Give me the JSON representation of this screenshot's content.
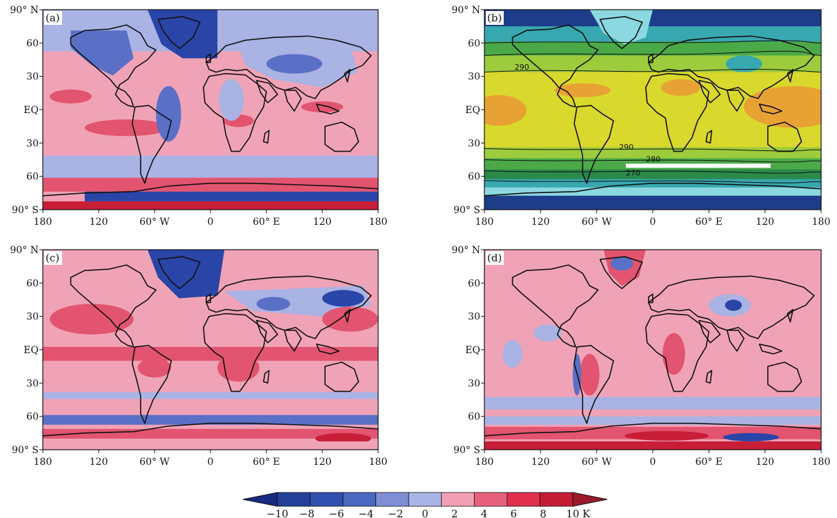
{
  "panels": [
    {
      "id": "a",
      "label": "(a)",
      "kind": "anomaly"
    },
    {
      "id": "b",
      "label": "(b)",
      "kind": "climatology",
      "contour_labels": [
        "290",
        "280",
        "290",
        "270"
      ]
    },
    {
      "id": "c",
      "label": "(c)",
      "kind": "anomaly"
    },
    {
      "id": "d",
      "label": "(d)",
      "kind": "anomaly"
    }
  ],
  "lat_ticks": [
    "90° N",
    "60",
    "30",
    "EQ",
    "30",
    "60",
    "90° S"
  ],
  "lon_ticks": [
    "180",
    "120",
    "60° W",
    "0",
    "60° E",
    "120",
    "180"
  ],
  "colorbar": {
    "ticks": [
      "−10",
      "−8",
      "−6",
      "−4",
      "−2",
      "0",
      "2",
      "4",
      "6",
      "8",
      "10"
    ],
    "unit": "K",
    "colors": [
      "#1a2a80",
      "#25409a",
      "#3050b0",
      "#4a68c0",
      "#7f8fd4",
      "#aab4e6",
      "#f2a0b4",
      "#e8607f",
      "#e0304c",
      "#c41d35",
      "#9b1a2a"
    ]
  },
  "colors": {
    "neg_strong": "#2a45a8",
    "neg_mid": "#5a6fc6",
    "neg_light": "#a9b3e4",
    "pos_light": "#f0a3b6",
    "pos_mid": "#e2546f",
    "pos_strong": "#c81e38",
    "clim_orange": "#e8a234",
    "clim_yellow": "#d9d82c",
    "clim_lgreen": "#9ccc3c",
    "clim_green": "#4ba948",
    "clim_dgreen": "#2a8a4a",
    "clim_teal": "#38a8b0",
    "clim_lblue": "#8cd8e0",
    "clim_navy": "#1d3d8a",
    "coast": "#111111"
  }
}
